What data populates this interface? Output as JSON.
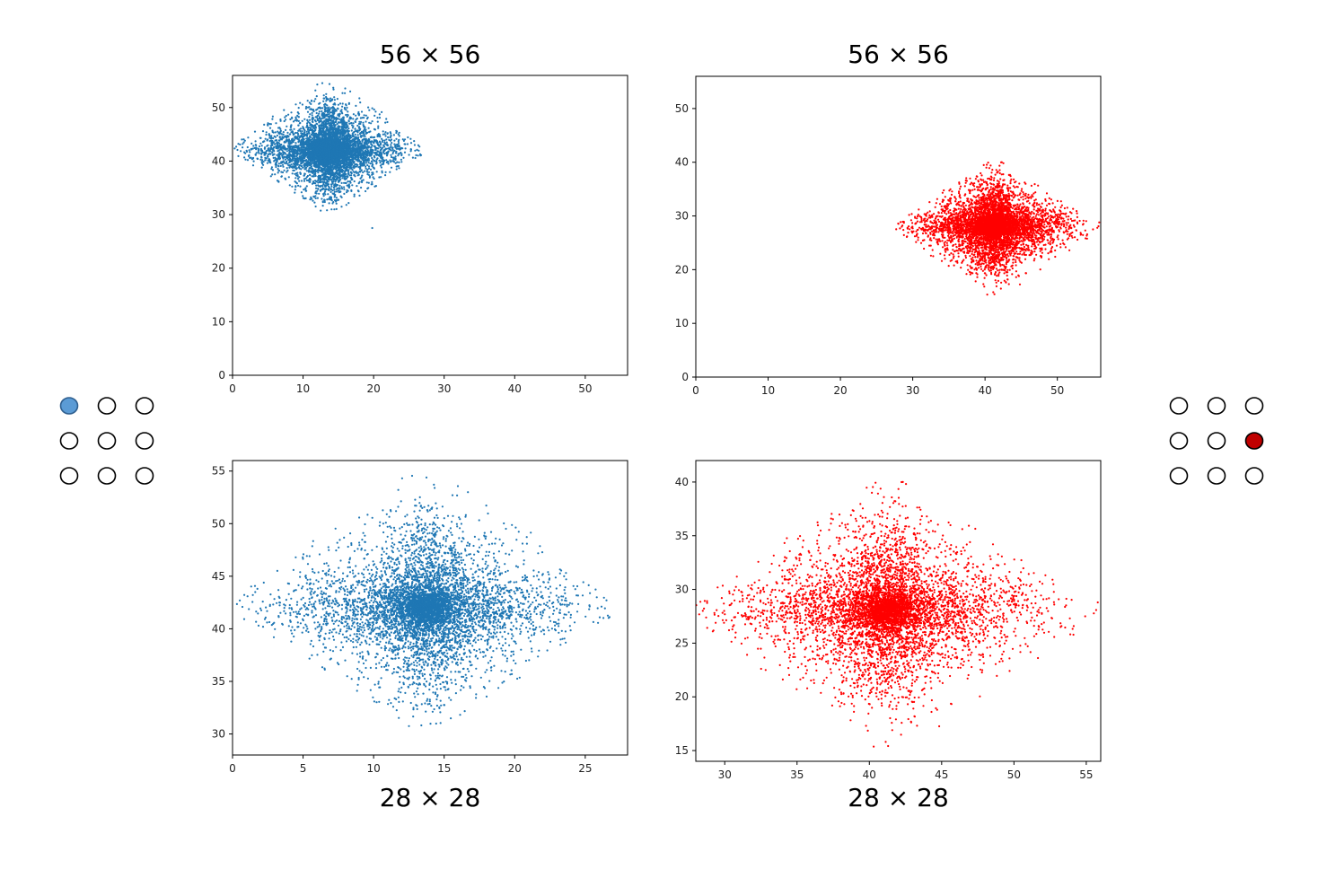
{
  "colors": {
    "blue_series": "#1f77b4",
    "red_series": "#ff0000",
    "blue_grid_fill": "#5b9bd5",
    "red_grid_fill": "#c00000"
  },
  "grids": {
    "left": {
      "rows": 3,
      "cols": 3,
      "active_row": 0,
      "active_col": 0,
      "active_color": "#5b9bd5"
    },
    "right": {
      "rows": 3,
      "cols": 3,
      "active_row": 1,
      "active_col": 2,
      "active_color": "#c00000"
    }
  },
  "chart_data": [
    {
      "type": "scatter",
      "title": "56 × 56",
      "title_position": "top",
      "color": "#1f77b4",
      "xlim": [
        0,
        56
      ],
      "ylim": [
        0,
        56
      ],
      "xticks": [
        0,
        10,
        20,
        30,
        40,
        50
      ],
      "yticks": [
        0,
        10,
        20,
        30,
        40,
        50
      ],
      "cluster": {
        "center": [
          13.8,
          42.0
        ],
        "x_range": [
          0,
          27.4
        ],
        "y_range": [
          30.2,
          56
        ],
        "n_points": 6000
      },
      "outliers": [
        [
          19.8,
          27.5
        ]
      ]
    },
    {
      "type": "scatter",
      "title": "56 × 56",
      "title_position": "top",
      "color": "#ff0000",
      "xlim": [
        0,
        56
      ],
      "ylim": [
        0,
        56
      ],
      "xticks": [
        0,
        10,
        20,
        30,
        40,
        50
      ],
      "yticks": [
        0,
        10,
        20,
        30,
        40,
        50
      ],
      "cluster": {
        "center": [
          41.3,
          28.0
        ],
        "x_range": [
          27.5,
          56
        ],
        "y_range": [
          14.6,
          40.8
        ],
        "n_points": 6000
      },
      "outliers": []
    },
    {
      "type": "scatter",
      "title": "28 × 28",
      "title_position": "bottom",
      "color": "#1f77b4",
      "xlim": [
        0,
        28
      ],
      "ylim": [
        28,
        56
      ],
      "xticks": [
        0,
        5,
        10,
        15,
        20,
        25
      ],
      "yticks": [
        30,
        35,
        40,
        45,
        50,
        55
      ],
      "cluster": {
        "center": [
          13.8,
          42.0
        ],
        "x_range": [
          0,
          27.4
        ],
        "y_range": [
          30.2,
          56
        ],
        "n_points": 6000
      },
      "outliers": []
    },
    {
      "type": "scatter",
      "title": "28 × 28",
      "title_position": "bottom",
      "color": "#ff0000",
      "xlim": [
        28,
        56
      ],
      "ylim": [
        14,
        42
      ],
      "xticks": [
        30,
        35,
        40,
        45,
        50,
        55
      ],
      "yticks": [
        15,
        20,
        25,
        30,
        35,
        40
      ],
      "cluster": {
        "center": [
          41.3,
          28.0
        ],
        "x_range": [
          27.5,
          56
        ],
        "y_range": [
          14.6,
          40.8
        ],
        "n_points": 6000
      },
      "outliers": []
    }
  ]
}
